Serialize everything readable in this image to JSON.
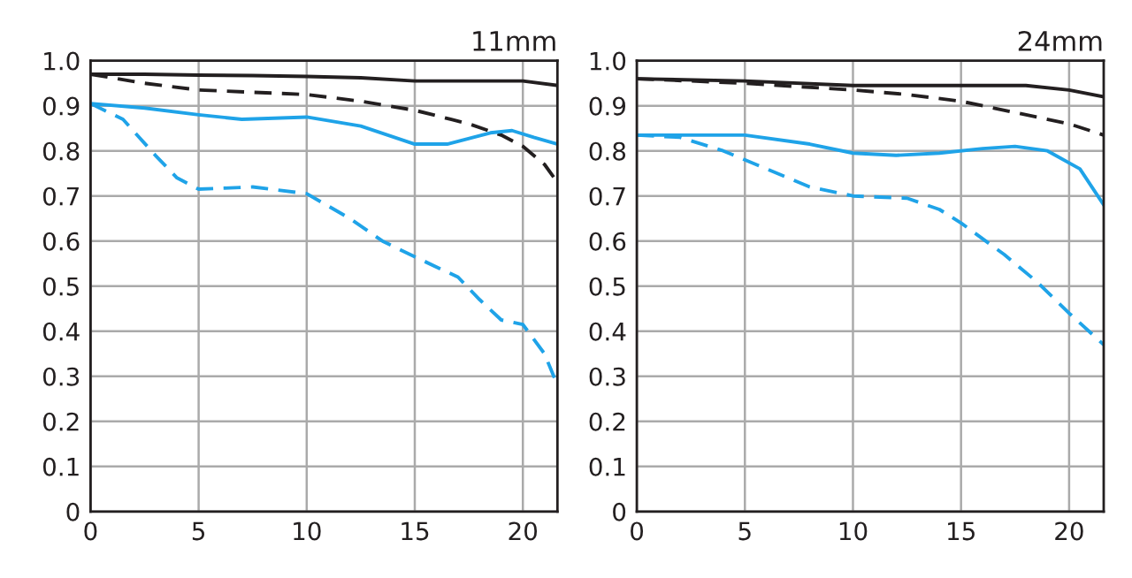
{
  "chart_data": [
    {
      "type": "line",
      "title": "11mm",
      "xlim": [
        0,
        21.6
      ],
      "ylim": [
        0,
        1.0
      ],
      "xticks": [
        0,
        5,
        10,
        15,
        20
      ],
      "yticks": [
        0,
        0.1,
        0.2,
        0.3,
        0.4,
        0.5,
        0.6,
        0.7,
        0.8,
        0.9,
        {
          "value": 1.0,
          "label": "1.0"
        }
      ],
      "grid": true,
      "series": [
        {
          "color": "#231f20",
          "line_style": "solid",
          "x": [
            0,
            2.5,
            5,
            7.5,
            10,
            12.5,
            15,
            17.5,
            20,
            21.6
          ],
          "values": [
            0.97,
            0.97,
            0.968,
            0.967,
            0.965,
            0.962,
            0.955,
            0.955,
            0.955,
            0.945
          ]
        },
        {
          "color": "#231f20",
          "line_style": "dashed",
          "x": [
            0,
            2.5,
            5,
            7.5,
            10,
            12.5,
            15,
            17.5,
            19,
            20,
            21,
            21.6
          ],
          "values": [
            0.97,
            0.95,
            0.935,
            0.93,
            0.925,
            0.91,
            0.89,
            0.86,
            0.835,
            0.81,
            0.77,
            0.73
          ]
        },
        {
          "color": "#1fa3e8",
          "line_style": "solid",
          "x": [
            0,
            2.5,
            5,
            7,
            10,
            12.5,
            15,
            16.5,
            18.5,
            19.5,
            20.5,
            21.6
          ],
          "values": [
            0.905,
            0.895,
            0.88,
            0.87,
            0.875,
            0.855,
            0.815,
            0.815,
            0.84,
            0.845,
            0.83,
            0.815
          ]
        },
        {
          "color": "#1fa3e8",
          "line_style": "dashed",
          "x": [
            0,
            1.5,
            3,
            4,
            5,
            7.5,
            10,
            12,
            13.5,
            15,
            17,
            18,
            19,
            20,
            21,
            21.6
          ],
          "values": [
            0.905,
            0.87,
            0.79,
            0.74,
            0.715,
            0.72,
            0.705,
            0.65,
            0.6,
            0.565,
            0.52,
            0.47,
            0.425,
            0.415,
            0.35,
            0.28
          ]
        }
      ]
    },
    {
      "type": "line",
      "title": "24mm",
      "xlim": [
        0,
        21.6
      ],
      "ylim": [
        0,
        1.0
      ],
      "xticks": [
        0,
        5,
        10,
        15,
        20
      ],
      "yticks": [
        0,
        0.1,
        0.2,
        0.3,
        0.4,
        0.5,
        0.6,
        0.7,
        0.8,
        0.9,
        {
          "value": 1.0,
          "label": "1.0"
        }
      ],
      "grid": true,
      "series": [
        {
          "color": "#231f20",
          "line_style": "solid",
          "x": [
            0,
            5,
            10,
            15,
            18,
            20,
            21.6
          ],
          "values": [
            0.96,
            0.955,
            0.945,
            0.945,
            0.945,
            0.935,
            0.92
          ]
        },
        {
          "color": "#231f20",
          "line_style": "dashed",
          "x": [
            0,
            5,
            10,
            12.5,
            15,
            17.5,
            20,
            21.6
          ],
          "values": [
            0.96,
            0.95,
            0.935,
            0.925,
            0.91,
            0.885,
            0.86,
            0.835
          ]
        },
        {
          "color": "#1fa3e8",
          "line_style": "solid",
          "x": [
            0,
            5,
            8,
            10,
            12,
            14,
            16,
            17.5,
            19,
            20.5,
            21.6
          ],
          "values": [
            0.835,
            0.835,
            0.815,
            0.795,
            0.79,
            0.795,
            0.805,
            0.81,
            0.8,
            0.76,
            0.68
          ]
        },
        {
          "color": "#1fa3e8",
          "line_style": "dashed",
          "x": [
            0,
            2,
            4,
            6,
            8,
            10,
            12.5,
            14,
            15,
            17,
            18.5,
            20,
            21.6
          ],
          "values": [
            0.835,
            0.83,
            0.8,
            0.76,
            0.72,
            0.7,
            0.695,
            0.67,
            0.64,
            0.57,
            0.51,
            0.44,
            0.37
          ]
        }
      ]
    }
  ]
}
